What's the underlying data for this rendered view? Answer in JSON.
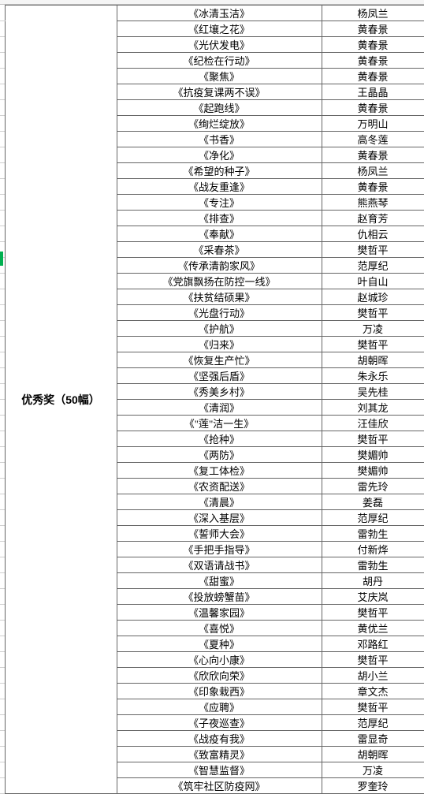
{
  "category_label": "优秀奖（50幅）",
  "border_color": "#666666",
  "green_marker_color": "#00b050",
  "background_color": "#ffffff",
  "font_size": 13,
  "row_height": 18.7,
  "rows": [
    {
      "title": "《冰清玉洁》",
      "author": "杨凤兰"
    },
    {
      "title": "《红壤之花》",
      "author": "黄春景"
    },
    {
      "title": "《光伏发电》",
      "author": "黄春景"
    },
    {
      "title": "《纪检在行动》",
      "author": "黄春景"
    },
    {
      "title": "《聚焦》",
      "author": "黄春景"
    },
    {
      "title": "《抗疫复课两不误》",
      "author": "王晶晶"
    },
    {
      "title": "《起跑线》",
      "author": "黄春景"
    },
    {
      "title": "《绚烂绽放》",
      "author": "万明山"
    },
    {
      "title": "《书香》",
      "author": "高冬莲"
    },
    {
      "title": "《净化》",
      "author": "黄春景"
    },
    {
      "title": "《希望的种子》",
      "author": "杨凤兰"
    },
    {
      "title": "《战友重逢》",
      "author": "黄春景"
    },
    {
      "title": "《专注》",
      "author": "熊燕琴"
    },
    {
      "title": "《排查》",
      "author": "赵育芳"
    },
    {
      "title": "《奉献》",
      "author": "仇相云"
    },
    {
      "title": "《采春茶》",
      "author": "樊哲平"
    },
    {
      "title": "《传承清韵家风》",
      "author": "范厚纪"
    },
    {
      "title": "《党旗飘扬在防控一线》",
      "author": "叶自山"
    },
    {
      "title": "《扶贫结硕果》",
      "author": "赵城珍"
    },
    {
      "title": "《光盘行动》",
      "author": "樊哲平"
    },
    {
      "title": "《护航》",
      "author": "万凌"
    },
    {
      "title": "《归来》",
      "author": "樊哲平"
    },
    {
      "title": "《恢复生产忙》",
      "author": "胡朝晖"
    },
    {
      "title": "《坚强后盾》",
      "author": "朱永乐"
    },
    {
      "title": "《秀美乡村》",
      "author": "吴先桂"
    },
    {
      "title": "《清润》",
      "author": "刘其龙"
    },
    {
      "title": "《\"莲\"洁一生》",
      "author": "汪佳欣"
    },
    {
      "title": "《抢种》",
      "author": "樊哲平"
    },
    {
      "title": "《两防》",
      "author": "樊媚帅"
    },
    {
      "title": "《复工体检》",
      "author": "樊媚帅"
    },
    {
      "title": "《农资配送》",
      "author": "雷先玲"
    },
    {
      "title": "《清晨》",
      "author": "姜磊"
    },
    {
      "title": "《深入基层》",
      "author": "范厚纪"
    },
    {
      "title": "《誓师大会》",
      "author": "雷勃生"
    },
    {
      "title": "《手把手指导》",
      "author": "付新烨"
    },
    {
      "title": "《双语请战书》",
      "author": "雷勃生"
    },
    {
      "title": "《甜蜜》",
      "author": "胡丹"
    },
    {
      "title": "《投放螃蟹苗》",
      "author": "艾庆岚"
    },
    {
      "title": "《温馨家园》",
      "author": "樊哲平"
    },
    {
      "title": "《喜悦》",
      "author": "黄优兰"
    },
    {
      "title": "《夏种》",
      "author": "邓路红"
    },
    {
      "title": "《心向小康》",
      "author": "樊哲平"
    },
    {
      "title": "《欣欣向荣》",
      "author": "胡小兰"
    },
    {
      "title": "《印象栽西》",
      "author": "章文杰"
    },
    {
      "title": "《应聘》",
      "author": "樊哲平"
    },
    {
      "title": "《子夜巡查》",
      "author": "范厚纪"
    },
    {
      "title": "《战疫有我》",
      "author": "雷显奇"
    },
    {
      "title": "《致富精灵》",
      "author": "胡朝晖"
    },
    {
      "title": "《智慧监督》",
      "author": "万凌"
    },
    {
      "title": "《筑牢社区防疫网》",
      "author": "罗奎玲"
    }
  ]
}
